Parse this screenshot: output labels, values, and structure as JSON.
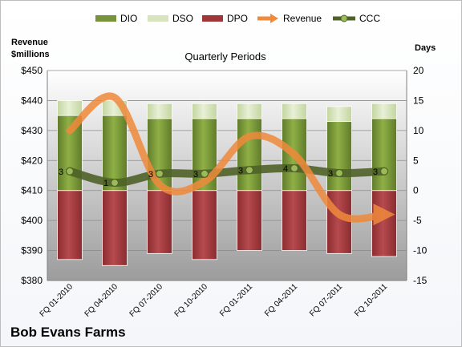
{
  "company": "Bob Evans Farms",
  "chart_data": {
    "type": "bar",
    "title": "Quarterly Periods",
    "y_left_label": [
      "Revenue",
      "$millions"
    ],
    "y_right_label": "Days",
    "y_left_ticks": [
      "$380",
      "$390",
      "$400",
      "$410",
      "$420",
      "$430",
      "$440",
      "$450"
    ],
    "y_left_range": [
      380,
      450
    ],
    "y_right_ticks": [
      "-15",
      "-10",
      "-5",
      "0",
      "5",
      "10",
      "15",
      "20"
    ],
    "y_right_range": [
      -15,
      20
    ],
    "categories": [
      "FQ 01-2010",
      "FQ 04-2010",
      "FQ 07-2010",
      "FQ 10-2010",
      "FQ 01-2011",
      "FQ 04-2011",
      "FQ 07-2011",
      "FQ 10-2011"
    ],
    "legend": [
      "DIO",
      "DSO",
      "DPO",
      "Revenue",
      "CCC"
    ],
    "colors": {
      "DIO": "#77933c",
      "DSO": "#d7e4bd",
      "DPO": "#a0363a",
      "Revenue": "#f08a3c",
      "CCC": "#4f6228"
    },
    "series": [
      {
        "name": "DIO",
        "axis": "right",
        "values": [
          12.5,
          12.5,
          12,
          12,
          12,
          12,
          11.5,
          12
        ]
      },
      {
        "name": "DSO",
        "axis": "right",
        "values": [
          2.5,
          2.5,
          2.5,
          2.5,
          2.5,
          2.5,
          2.5,
          2.5
        ]
      },
      {
        "name": "DPO",
        "axis": "right",
        "values": [
          -11.5,
          -12.5,
          -10.5,
          -11.5,
          -10,
          -10,
          -10.5,
          -11
        ]
      },
      {
        "name": "Revenue",
        "axis": "left",
        "values": [
          430,
          441,
          412,
          413,
          428,
          422,
          402,
          402
        ]
      },
      {
        "name": "CCC",
        "axis": "right",
        "values": [
          3.2,
          1.3,
          2.8,
          2.8,
          3.4,
          3.7,
          2.9,
          3.2
        ],
        "labels": [
          "3",
          "1",
          "3",
          "3",
          "3",
          "4",
          "3",
          "3"
        ]
      }
    ]
  }
}
